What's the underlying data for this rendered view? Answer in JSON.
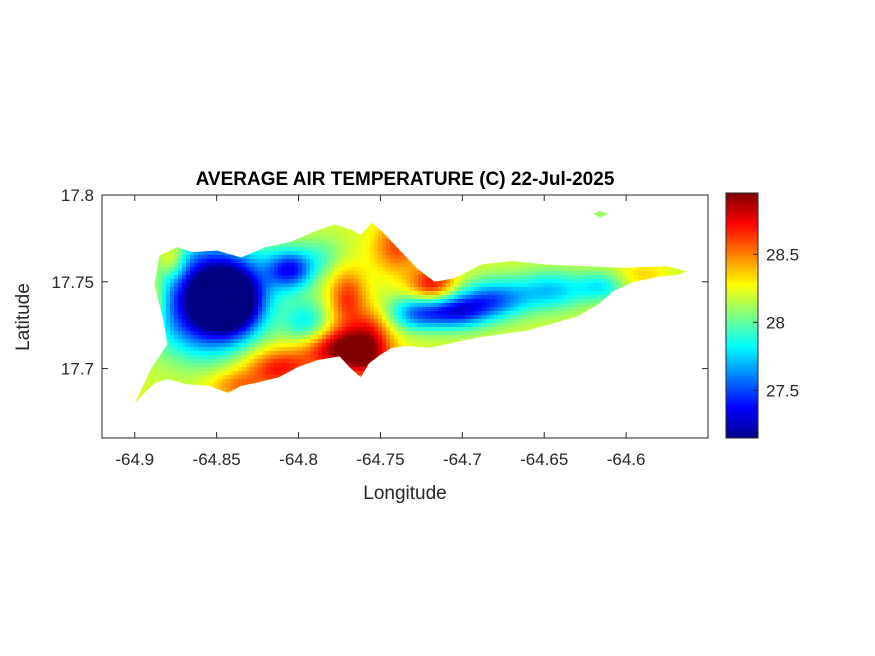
{
  "chart_data": {
    "type": "heatmap",
    "title": "AVERAGE AIR TEMPERATURE (C) 22-Jul-2025",
    "xlabel": "Longitude",
    "ylabel": "Latitude",
    "xlim": [
      -64.92,
      -64.55
    ],
    "ylim": [
      17.66,
      17.8
    ],
    "xticks": [
      -64.9,
      -64.85,
      -64.8,
      -64.75,
      -64.7,
      -64.65,
      -64.6
    ],
    "xtick_labels": [
      "-64.9",
      "-64.85",
      "-64.8",
      "-64.75",
      "-64.7",
      "-64.65",
      "-64.6"
    ],
    "yticks": [
      17.7,
      17.75,
      17.8
    ],
    "ytick_labels": [
      "17.7",
      "17.75",
      "17.8"
    ],
    "colorbar": {
      "colormap": "jet",
      "clim": [
        27.15,
        28.95
      ],
      "ticks": [
        27.5,
        28,
        28.5
      ],
      "tick_labels": [
        "27.5",
        "28",
        "28.5"
      ]
    },
    "grid": false,
    "island_outline": [
      [
        -64.9,
        17.68
      ],
      [
        -64.893,
        17.687
      ],
      [
        -64.887,
        17.692
      ],
      [
        -64.88,
        17.694
      ],
      [
        -64.868,
        17.691
      ],
      [
        -64.855,
        17.69
      ],
      [
        -64.843,
        17.686
      ],
      [
        -64.835,
        17.69
      ],
      [
        -64.825,
        17.692
      ],
      [
        -64.812,
        17.695
      ],
      [
        -64.8,
        17.701
      ],
      [
        -64.788,
        17.705
      ],
      [
        -64.775,
        17.707
      ],
      [
        -64.768,
        17.7
      ],
      [
        -64.762,
        17.695
      ],
      [
        -64.757,
        17.703
      ],
      [
        -64.75,
        17.708
      ],
      [
        -64.743,
        17.712
      ],
      [
        -64.733,
        17.713
      ],
      [
        -64.72,
        17.712
      ],
      [
        -64.705,
        17.715
      ],
      [
        -64.69,
        17.718
      ],
      [
        -64.675,
        17.72
      ],
      [
        -64.66,
        17.722
      ],
      [
        -64.645,
        17.726
      ],
      [
        -64.63,
        17.73
      ],
      [
        -64.617,
        17.737
      ],
      [
        -64.607,
        17.745
      ],
      [
        -64.595,
        17.75
      ],
      [
        -64.58,
        17.753
      ],
      [
        -64.568,
        17.754
      ],
      [
        -64.563,
        17.756
      ],
      [
        -64.575,
        17.759
      ],
      [
        -64.6,
        17.758
      ],
      [
        -64.625,
        17.759
      ],
      [
        -64.65,
        17.76
      ],
      [
        -64.67,
        17.762
      ],
      [
        -64.688,
        17.76
      ],
      [
        -64.705,
        17.752
      ],
      [
        -64.717,
        17.75
      ],
      [
        -64.728,
        17.758
      ],
      [
        -64.74,
        17.77
      ],
      [
        -64.75,
        17.78
      ],
      [
        -64.755,
        17.784
      ],
      [
        -64.762,
        17.777
      ],
      [
        -64.768,
        17.78
      ],
      [
        -64.778,
        17.783
      ],
      [
        -64.79,
        17.779
      ],
      [
        -64.805,
        17.773
      ],
      [
        -64.82,
        17.77
      ],
      [
        -64.835,
        17.764
      ],
      [
        -64.85,
        17.768
      ],
      [
        -64.865,
        17.767
      ],
      [
        -64.874,
        17.77
      ],
      [
        -64.885,
        17.765
      ],
      [
        -64.888,
        17.748
      ],
      [
        -64.883,
        17.73
      ],
      [
        -64.88,
        17.714
      ],
      [
        -64.89,
        17.7
      ],
      [
        -64.9,
        17.68
      ]
    ],
    "islet": [
      [
        -64.62,
        17.789
      ],
      [
        -64.616,
        17.791
      ],
      [
        -64.611,
        17.789
      ],
      [
        -64.616,
        17.787
      ]
    ],
    "temperature_field": {
      "background_value": 28.2,
      "anomalies": [
        {
          "lon": -64.852,
          "lat": 17.748,
          "value": 27.2,
          "spread_lon": 0.022,
          "spread_lat": 0.018
        },
        {
          "lon": -64.84,
          "lat": 17.738,
          "value": 27.35,
          "spread_lon": 0.012,
          "spread_lat": 0.012
        },
        {
          "lon": -64.805,
          "lat": 17.757,
          "value": 27.45,
          "spread_lon": 0.01,
          "spread_lat": 0.008
        },
        {
          "lon": -64.858,
          "lat": 17.725,
          "value": 27.7,
          "spread_lon": 0.02,
          "spread_lat": 0.015
        },
        {
          "lon": -64.76,
          "lat": 17.708,
          "value": 28.9,
          "spread_lon": 0.012,
          "spread_lat": 0.01
        },
        {
          "lon": -64.78,
          "lat": 17.712,
          "value": 28.75,
          "spread_lon": 0.015,
          "spread_lat": 0.008
        },
        {
          "lon": -64.812,
          "lat": 17.7,
          "value": 28.7,
          "spread_lon": 0.015,
          "spread_lat": 0.008
        },
        {
          "lon": -64.838,
          "lat": 17.69,
          "value": 28.5,
          "spread_lon": 0.012,
          "spread_lat": 0.006
        },
        {
          "lon": -64.77,
          "lat": 17.74,
          "value": 28.65,
          "spread_lon": 0.008,
          "spread_lat": 0.012
        },
        {
          "lon": -64.718,
          "lat": 17.748,
          "value": 28.75,
          "spread_lon": 0.01,
          "spread_lat": 0.008
        },
        {
          "lon": -64.74,
          "lat": 17.77,
          "value": 28.6,
          "spread_lon": 0.01,
          "spread_lat": 0.01
        },
        {
          "lon": -64.877,
          "lat": 17.762,
          "value": 28.55,
          "spread_lon": 0.006,
          "spread_lat": 0.008
        },
        {
          "lon": -64.888,
          "lat": 17.74,
          "value": 28.5,
          "spread_lon": 0.005,
          "spread_lat": 0.01
        },
        {
          "lon": -64.704,
          "lat": 17.733,
          "value": 27.45,
          "spread_lon": 0.014,
          "spread_lat": 0.007
        },
        {
          "lon": -64.68,
          "lat": 17.74,
          "value": 27.6,
          "spread_lon": 0.015,
          "spread_lat": 0.008
        },
        {
          "lon": -64.728,
          "lat": 17.732,
          "value": 27.65,
          "spread_lon": 0.012,
          "spread_lat": 0.007
        },
        {
          "lon": -64.645,
          "lat": 17.745,
          "value": 27.75,
          "spread_lon": 0.015,
          "spread_lat": 0.008
        },
        {
          "lon": -64.615,
          "lat": 17.747,
          "value": 27.85,
          "spread_lon": 0.01,
          "spread_lat": 0.006
        },
        {
          "lon": -64.795,
          "lat": 17.725,
          "value": 27.8,
          "spread_lon": 0.01,
          "spread_lat": 0.01
        },
        {
          "lon": -64.785,
          "lat": 17.765,
          "value": 28.0,
          "spread_lon": 0.01,
          "spread_lat": 0.008
        },
        {
          "lon": -64.755,
          "lat": 17.725,
          "value": 28.45,
          "spread_lon": 0.008,
          "spread_lat": 0.008
        },
        {
          "lon": -64.59,
          "lat": 17.754,
          "value": 28.35,
          "spread_lon": 0.01,
          "spread_lat": 0.005
        }
      ]
    }
  }
}
